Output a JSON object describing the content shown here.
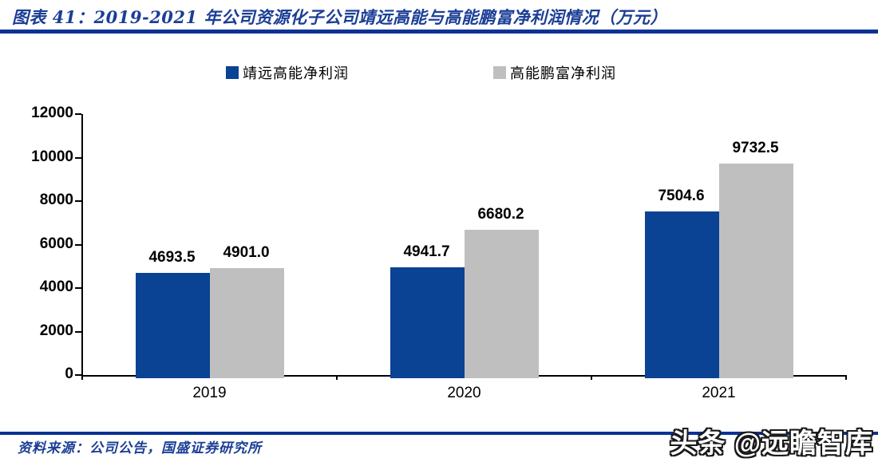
{
  "header": {
    "title": "图表 41：2019-2021 年公司资源化子公司靖远高能与高能鹏富净利润情况（万元）"
  },
  "chart_data": {
    "type": "bar",
    "title": "2019-2021 年公司资源化子公司靖远高能与高能鹏富净利润情况（万元）",
    "categories": [
      "2019",
      "2020",
      "2021"
    ],
    "series": [
      {
        "name": "靖远高能净利润",
        "color": "#0A4294",
        "values": [
          4693.5,
          4941.7,
          7504.6
        ]
      },
      {
        "name": "高能鹏富净利润",
        "color": "#BFBFBF",
        "values": [
          4901.0,
          6680.2,
          9732.5
        ]
      }
    ],
    "xlabel": "",
    "ylabel": "",
    "ylim": [
      0,
      12000
    ],
    "ytick_step": 2000,
    "grid": false,
    "legend_position": "top",
    "value_labels_decimals": 1
  },
  "footer": {
    "source_label": "资料来源：公司公告，国盛证券研究所"
  },
  "watermark": {
    "text": "头条 @远瞻智库"
  },
  "colors": {
    "bar_blue": "#0A4294",
    "bar_gray": "#BFBFBF",
    "line_blue": "#0A3296",
    "title_blue": "#1B3E96",
    "axis_black": "#000000"
  }
}
